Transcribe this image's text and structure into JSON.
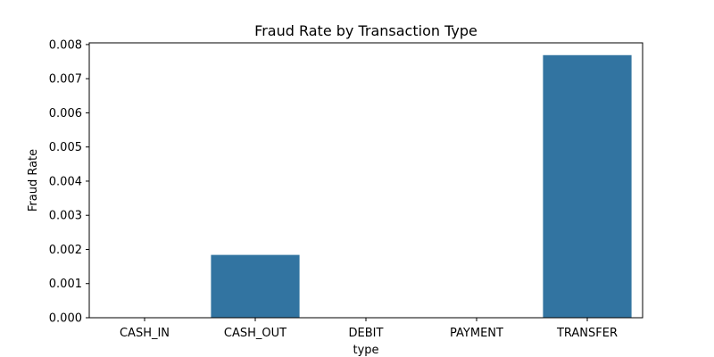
{
  "chart_data": {
    "type": "bar",
    "title": "Fraud Rate by Transaction Type",
    "xlabel": "type",
    "ylabel": "Fraud Rate",
    "categories": [
      "CASH_IN",
      "CASH_OUT",
      "DEBIT",
      "PAYMENT",
      "TRANSFER"
    ],
    "values": [
      0,
      0.00184,
      0,
      0,
      0.00769
    ],
    "ylim": [
      0,
      0.00805
    ],
    "yticks": [
      0,
      0.001,
      0.002,
      0.003,
      0.004,
      0.005,
      0.006,
      0.007,
      0.008
    ],
    "ytick_labels": [
      "0.000",
      "0.001",
      "0.002",
      "0.003",
      "0.004",
      "0.005",
      "0.006",
      "0.007",
      "0.008"
    ],
    "bar_color": "#3274a1",
    "grid": false,
    "legend": false
  }
}
